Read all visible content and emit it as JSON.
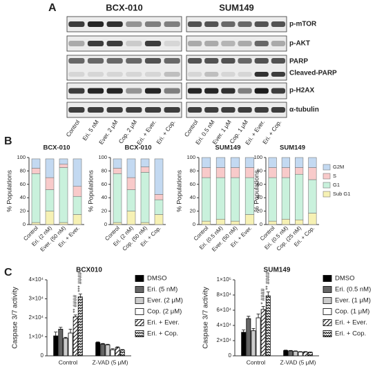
{
  "panel_labels": {
    "a": "A",
    "b": "B",
    "c": "C"
  },
  "blots": [
    {
      "title": "BCX-010",
      "lanes": [
        "Control",
        "Eri. 5 nM",
        "Ever. 2 μM",
        "Cop. 2 μM",
        "Eri. + Ever.",
        "Eri. + Cop."
      ]
    },
    {
      "title": "SUM149",
      "lanes": [
        "Control",
        "Eri. 0.5 nM",
        "Ever. 1 μM",
        "Cop. 1 μM",
        "Eri. + Ever.",
        "Eri. + Cop."
      ]
    }
  ],
  "proteins": [
    "p-mTOR",
    "p-AKT",
    "PARP",
    "Cleaved-PARP",
    "p-H2AX",
    "α-tubulin"
  ],
  "chart_data": [
    {
      "type": "stacked_bar",
      "title": "BCX-010",
      "ylabel": "% Populations",
      "categories": [
        "Control",
        "Eri. (2 nM)",
        "Ever. (50 nM)",
        "Eri. + Ever."
      ],
      "series": [
        {
          "name": "Sub G1",
          "color": "#f6f1b4",
          "values": [
            3,
            20,
            3,
            15
          ]
        },
        {
          "name": "G1",
          "color": "#c9f1dc",
          "values": [
            73,
            32,
            82,
            27
          ]
        },
        {
          "name": "S",
          "color": "#f8caca",
          "values": [
            8,
            18,
            5,
            15
          ]
        },
        {
          "name": "G2M",
          "color": "#c3d9f1",
          "values": [
            14,
            28,
            8,
            41
          ]
        }
      ],
      "ylim": [
        0,
        100
      ],
      "yticks": [
        0,
        20,
        40,
        60,
        80,
        100
      ],
      "legend": false
    },
    {
      "type": "stacked_bar",
      "title": "BCX-010",
      "ylabel": "% Populations",
      "categories": [
        "Control",
        "Eri. (2 nM)",
        "Cop. (50 nM)",
        "Eri. + Cop."
      ],
      "series": [
        {
          "name": "Sub G1",
          "color": "#f6f1b4",
          "values": [
            3,
            20,
            3,
            15
          ]
        },
        {
          "name": "G1",
          "color": "#c9f1dc",
          "values": [
            73,
            32,
            75,
            22
          ]
        },
        {
          "name": "S",
          "color": "#f8caca",
          "values": [
            8,
            18,
            8,
            8
          ]
        },
        {
          "name": "G2M",
          "color": "#c3d9f1",
          "values": [
            14,
            28,
            12,
            53
          ]
        }
      ],
      "ylim": [
        0,
        100
      ],
      "yticks": [
        0,
        20,
        40,
        60,
        80,
        100
      ],
      "legend": false
    },
    {
      "type": "stacked_bar",
      "title": "SUM149",
      "ylabel": "% Populations",
      "categories": [
        "Control",
        "Eri. (0.5 nM)",
        "Ever. (50 nM)",
        "Eri. + Ever."
      ],
      "series": [
        {
          "name": "Sub G1",
          "color": "#f6f1b4",
          "values": [
            5,
            8,
            5,
            15
          ]
        },
        {
          "name": "G1",
          "color": "#c9f1dc",
          "values": [
            65,
            62,
            65,
            55
          ]
        },
        {
          "name": "S",
          "color": "#f8caca",
          "values": [
            15,
            15,
            15,
            15
          ]
        },
        {
          "name": "G2M",
          "color": "#c3d9f1",
          "values": [
            15,
            15,
            15,
            15
          ]
        }
      ],
      "ylim": [
        0,
        100
      ],
      "yticks": [
        0,
        20,
        40,
        60,
        80,
        100
      ],
      "legend": false
    },
    {
      "type": "stacked_bar",
      "title": "SUM149",
      "ylabel": "% Populations",
      "categories": [
        "Control",
        "Eri. (0.5 nM)",
        "Cop. (25 nM)",
        "Eri. + Cop."
      ],
      "series": [
        {
          "name": "Sub G1",
          "color": "#f6f1b4",
          "values": [
            5,
            8,
            7,
            17
          ]
        },
        {
          "name": "G1",
          "color": "#c9f1dc",
          "values": [
            65,
            62,
            68,
            50
          ]
        },
        {
          "name": "S",
          "color": "#f8caca",
          "values": [
            15,
            15,
            10,
            18
          ]
        },
        {
          "name": "G2M",
          "color": "#c3d9f1",
          "values": [
            15,
            15,
            15,
            15
          ]
        }
      ],
      "ylim": [
        0,
        100
      ],
      "yticks": [
        0,
        20,
        40,
        60,
        80,
        100
      ],
      "legend": true
    },
    {
      "type": "grouped_bar",
      "title": "BCX010",
      "ylabel": "Caspase 3/7 activity",
      "categories": [
        "Control",
        "Z-VAD (5 μM)"
      ],
      "series": [
        {
          "name": "DMSO",
          "color": "#000000",
          "values": [
            10500,
            7000
          ],
          "errors": [
            2000,
            300
          ]
        },
        {
          "name": "Eri. (5 nM)",
          "color": "#666666",
          "values": [
            14000,
            6200
          ],
          "errors": [
            1000,
            300
          ]
        },
        {
          "name": "Ever. (2 μM)",
          "color": "#cccccc",
          "values": [
            9200,
            5800
          ],
          "errors": [
            500,
            300
          ]
        },
        {
          "name": "Cop. (2 μM)",
          "color": "#ffffff",
          "values": [
            12000,
            3200
          ],
          "errors": [
            2000,
            500
          ]
        },
        {
          "name": "Eri. + Ever.",
          "color": "#000000",
          "pattern": "diagonal",
          "values": [
            20500,
            4300
          ],
          "errors": [
            1000,
            400
          ]
        },
        {
          "name": "Eri. + Cop.",
          "color": "#000000",
          "pattern": "zigzag",
          "values": [
            31000,
            3000
          ],
          "errors": [
            1500,
            300
          ]
        }
      ],
      "annotations": [
        {
          "text": "**",
          "series": 4,
          "category": 0
        },
        {
          "text": "####",
          "series": 4,
          "category": 0
        },
        {
          "text": "***",
          "series": 5,
          "category": 0
        },
        {
          "text": "####",
          "series": 5,
          "category": 0
        }
      ],
      "ylim": [
        0,
        40000
      ],
      "yticks": [
        0,
        {
          "value": 10000,
          "label": "1×10⁴"
        },
        {
          "value": 20000,
          "label": "2×10⁴"
        },
        {
          "value": 30000,
          "label": "3×10⁴"
        },
        {
          "value": 40000,
          "label": "4×10⁴"
        }
      ],
      "legend": "right"
    },
    {
      "type": "grouped_bar",
      "title": "SUM149",
      "ylabel": "Caspase 3/7 activity",
      "categories": [
        "Control",
        "Z-VAD (5 μM)"
      ],
      "series": [
        {
          "name": "DMSO",
          "color": "#000000",
          "values": [
            31000,
            7000
          ],
          "errors": [
            3000,
            500
          ]
        },
        {
          "name": "Eri. (0.5 nM)",
          "color": "#666666",
          "values": [
            49000,
            6500
          ],
          "errors": [
            3000,
            500
          ]
        },
        {
          "name": "Ever. (1 μM)",
          "color": "#cccccc",
          "values": [
            33000,
            6000
          ],
          "errors": [
            3000,
            500
          ]
        },
        {
          "name": "Cop. (1 μM)",
          "color": "#ffffff",
          "values": [
            50000,
            5000
          ],
          "errors": [
            5000,
            500
          ]
        },
        {
          "name": "Eri. + Ever.",
          "color": "#000000",
          "pattern": "diagonal",
          "values": [
            61000,
            5000
          ],
          "errors": [
            4000,
            500
          ]
        },
        {
          "name": "Eri. + Cop.",
          "color": "#000000",
          "pattern": "zigzag",
          "values": [
            79000,
            4500
          ],
          "errors": [
            5000,
            500
          ]
        }
      ],
      "annotations": [
        {
          "text": "*",
          "series": 4,
          "category": 0
        },
        {
          "text": "####",
          "series": 4,
          "category": 0
        },
        {
          "text": "**",
          "series": 5,
          "category": 0
        },
        {
          "text": "####",
          "series": 5,
          "category": 0
        }
      ],
      "ylim": [
        0,
        100000
      ],
      "yticks": [
        0,
        {
          "value": 20000,
          "label": "2×10⁴"
        },
        {
          "value": 40000,
          "label": "4×10⁴"
        },
        {
          "value": 60000,
          "label": "6×10⁴"
        },
        {
          "value": 80000,
          "label": "8×10⁴"
        },
        {
          "value": 100000,
          "label": "1×10⁵"
        }
      ],
      "legend": "right"
    }
  ]
}
